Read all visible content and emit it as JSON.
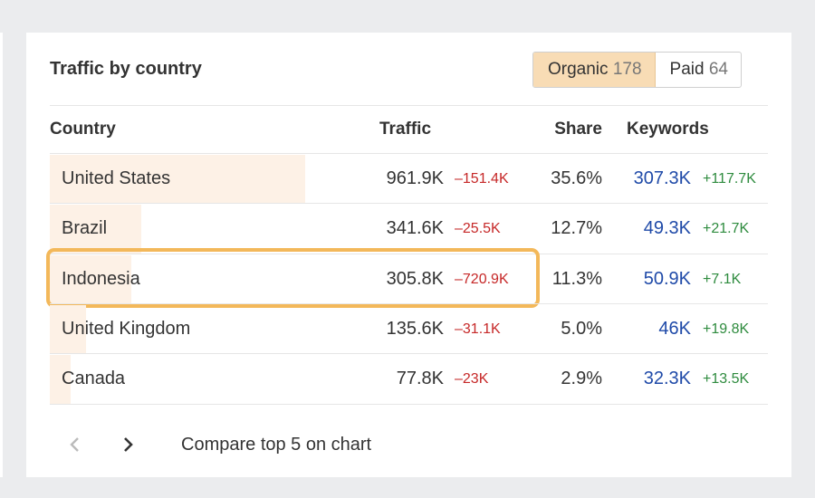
{
  "title": "Traffic by country",
  "toggle": [
    {
      "label": "Organic",
      "count": "178",
      "active": true
    },
    {
      "label": "Paid",
      "count": "64",
      "active": false
    }
  ],
  "columns": {
    "country": "Country",
    "traffic": "Traffic",
    "share": "Share",
    "keywords": "Keywords"
  },
  "rows": [
    {
      "country": "United States",
      "traffic": "961.9K",
      "traffic_change": "–151.4K",
      "share": "35.6%",
      "share_value": 35.6,
      "keywords": "307.3K",
      "keywords_change": "+117.7K"
    },
    {
      "country": "Brazil",
      "traffic": "341.6K",
      "traffic_change": "–25.5K",
      "share": "12.7%",
      "share_value": 12.7,
      "keywords": "49.3K",
      "keywords_change": "+21.7K"
    },
    {
      "country": "Indonesia",
      "traffic": "305.8K",
      "traffic_change": "–720.9K",
      "share": "11.3%",
      "share_value": 11.3,
      "keywords": "50.9K",
      "keywords_change": "+7.1K",
      "highlighted": true
    },
    {
      "country": "United Kingdom",
      "traffic": "135.6K",
      "traffic_change": "–31.1K",
      "share": "5.0%",
      "share_value": 5.0,
      "keywords": "46K",
      "keywords_change": "+19.8K"
    },
    {
      "country": "Canada",
      "traffic": "77.8K",
      "traffic_change": "–23K",
      "share": "2.9%",
      "share_value": 2.9,
      "keywords": "32.3K",
      "keywords_change": "+13.5K"
    }
  ],
  "footer": {
    "prev_icon": "chevron-left-icon",
    "next_icon": "chevron-right-icon",
    "compare_label": "Compare top 5 on chart"
  },
  "colors": {
    "accent": "#f8dcb5",
    "highlight": "#f3b85a",
    "negative": "#c62828",
    "positive": "#2e8b3e",
    "link": "#1f4aa8",
    "bar": "#fdf1e6"
  }
}
